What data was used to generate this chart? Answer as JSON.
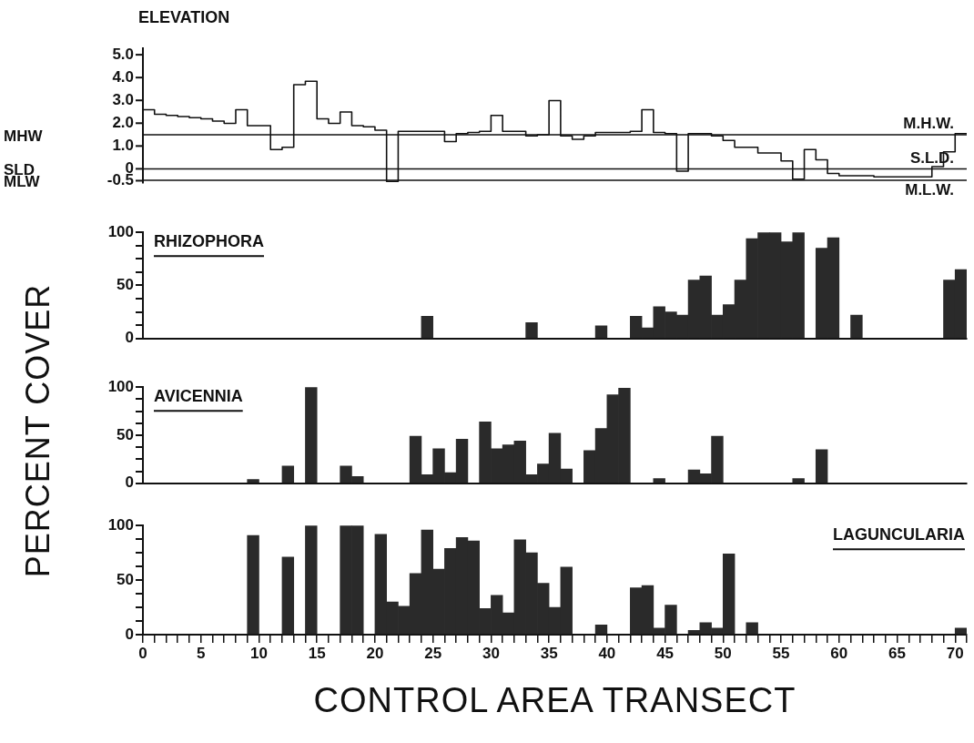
{
  "chart_data": [
    {
      "type": "step",
      "title": "ELEVATION",
      "color": "#111111",
      "xlim": [
        0,
        71
      ],
      "ylim": [
        -0.6,
        5.3
      ],
      "tick_labels": "y",
      "yticks": [
        {
          "value": 5,
          "label": "5.0"
        },
        {
          "value": 4,
          "label": "4.0"
        },
        {
          "value": 3,
          "label": "3.0"
        },
        {
          "value": 2,
          "label": "2.0"
        },
        {
          "value": 1,
          "label": "1.0"
        },
        0,
        -0.5
      ],
      "x": [
        0,
        1,
        2,
        3,
        4,
        5,
        6,
        7,
        8,
        9,
        10,
        11,
        12,
        13,
        14,
        15,
        16,
        17,
        18,
        19,
        20,
        21,
        22,
        23,
        24,
        25,
        26,
        27,
        28,
        29,
        30,
        31,
        32,
        33,
        34,
        35,
        36,
        37,
        38,
        39,
        40,
        41,
        42,
        43,
        44,
        45,
        46,
        47,
        48,
        49,
        50,
        51,
        52,
        53,
        54,
        55,
        56,
        57,
        58,
        59,
        60,
        61,
        62,
        63,
        64,
        65,
        66,
        67,
        68,
        69,
        70,
        71
      ],
      "values": [
        2.6,
        2.4,
        2.35,
        2.3,
        2.25,
        2.2,
        2.1,
        2.0,
        2.6,
        1.9,
        1.9,
        0.85,
        0.95,
        3.7,
        3.85,
        2.2,
        2.0,
        2.5,
        1.9,
        1.85,
        1.7,
        -0.55,
        1.65,
        1.65,
        1.65,
        1.65,
        1.2,
        1.55,
        1.6,
        1.65,
        2.35,
        1.65,
        1.65,
        1.45,
        1.5,
        3.0,
        1.45,
        1.3,
        1.45,
        1.6,
        1.6,
        1.6,
        1.65,
        2.6,
        1.6,
        1.55,
        -0.1,
        1.55,
        1.55,
        1.45,
        1.25,
        0.95,
        0.95,
        0.7,
        0.7,
        0.35,
        -0.45,
        0.85,
        0.4,
        -0.2,
        -0.3,
        -0.3,
        -0.3,
        -0.35,
        -0.35,
        -0.35,
        -0.35,
        -0.35,
        0.1,
        0.75,
        1.55,
        1.55
      ],
      "ref_lines": [
        {
          "axis": "y",
          "value": 1.5,
          "label": "M.H.W."
        },
        {
          "axis": "y",
          "value": 0,
          "label": "S.L.D."
        },
        {
          "axis": "y",
          "value": -0.5,
          "label": "M.L.W."
        }
      ],
      "annotations": [
        "MHW",
        "SLD",
        "MLW"
      ]
    },
    {
      "type": "bar",
      "title": "RHIZOPHORA",
      "color": "#2a2a2a",
      "xlim": [
        0,
        71
      ],
      "ylim": [
        0,
        100
      ],
      "tick_labels": "y",
      "yticks": [
        0,
        {
          "value": 12.5,
          "label": null
        },
        {
          "value": 25,
          "label": null
        },
        {
          "value": 37.5,
          "label": null
        },
        50,
        {
          "value": 62.5,
          "label": null
        },
        {
          "value": 75,
          "label": null
        },
        {
          "value": 87.5,
          "label": null
        },
        100
      ],
      "x": [
        24.5,
        33.5,
        39.5,
        42.5,
        43.5,
        44.5,
        45.5,
        46.5,
        47.5,
        48.5,
        49.5,
        50.5,
        51.5,
        52.5,
        53.5,
        54.5,
        55.5,
        56.5,
        58.5,
        59.5,
        61.5,
        69.5,
        70.5
      ],
      "values": [
        21,
        15,
        12,
        21,
        10,
        30,
        25,
        22,
        55,
        59,
        22,
        32,
        55,
        94,
        100,
        100,
        91,
        100,
        85,
        95,
        22,
        55,
        65
      ]
    },
    {
      "type": "bar",
      "title": "AVICENNIA",
      "ylabel": "PERCENT COVER",
      "color": "#2a2a2a",
      "xlim": [
        0,
        71
      ],
      "ylim": [
        0,
        100
      ],
      "tick_labels": "y",
      "yticks": [
        0,
        {
          "value": 12.5,
          "label": null
        },
        {
          "value": 25,
          "label": null
        },
        {
          "value": 37.5,
          "label": null
        },
        50,
        {
          "value": 62.5,
          "label": null
        },
        {
          "value": 75,
          "label": null
        },
        {
          "value": 87.5,
          "label": null
        },
        100
      ],
      "x": [
        9.5,
        12.5,
        14.5,
        17.5,
        18.5,
        23.5,
        24.5,
        25.5,
        26.5,
        27.5,
        29.5,
        30.5,
        31.5,
        32.5,
        33.5,
        34.5,
        35.5,
        36.5,
        38.5,
        39.5,
        40.5,
        41.5,
        44.5,
        47.5,
        48.5,
        49.5,
        56.5,
        58.5
      ],
      "values": [
        4,
        18,
        100,
        18,
        7,
        49,
        9,
        36,
        11,
        46,
        64,
        36,
        40,
        44,
        9,
        20,
        52,
        15,
        34,
        57,
        92,
        99,
        5,
        14,
        10,
        49,
        5,
        35
      ]
    },
    {
      "type": "bar",
      "title": "LAGUNCULARIA",
      "xlabel": "CONTROL AREA TRANSECT",
      "color": "#2a2a2a",
      "xlim": [
        0,
        71
      ],
      "ylim": [
        0,
        100
      ],
      "yticks": [
        0,
        {
          "value": 12.5,
          "label": null
        },
        {
          "value": 25,
          "label": null
        },
        {
          "value": 37.5,
          "label": null
        },
        50,
        {
          "value": 62.5,
          "label": null
        },
        {
          "value": 75,
          "label": null
        },
        {
          "value": 87.5,
          "label": null
        },
        100
      ],
      "xticks": [
        0,
        {
          "value": 1,
          "label": null
        },
        {
          "value": 2,
          "label": null
        },
        {
          "value": 3,
          "label": null
        },
        {
          "value": 4,
          "label": null
        },
        5,
        {
          "value": 6,
          "label": null
        },
        {
          "value": 7,
          "label": null
        },
        {
          "value": 8,
          "label": null
        },
        {
          "value": 9,
          "label": null
        },
        10,
        {
          "value": 11,
          "label": null
        },
        {
          "value": 12,
          "label": null
        },
        {
          "value": 13,
          "label": null
        },
        {
          "value": 14,
          "label": null
        },
        15,
        {
          "value": 16,
          "label": null
        },
        {
          "value": 17,
          "label": null
        },
        {
          "value": 18,
          "label": null
        },
        {
          "value": 19,
          "label": null
        },
        20,
        {
          "value": 21,
          "label": null
        },
        {
          "value": 22,
          "label": null
        },
        {
          "value": 23,
          "label": null
        },
        {
          "value": 24,
          "label": null
        },
        25,
        {
          "value": 26,
          "label": null
        },
        {
          "value": 27,
          "label": null
        },
        {
          "value": 28,
          "label": null
        },
        {
          "value": 29,
          "label": null
        },
        30,
        {
          "value": 31,
          "label": null
        },
        {
          "value": 32,
          "label": null
        },
        {
          "value": 33,
          "label": null
        },
        {
          "value": 34,
          "label": null
        },
        35,
        {
          "value": 36,
          "label": null
        },
        {
          "value": 37,
          "label": null
        },
        {
          "value": 38,
          "label": null
        },
        {
          "value": 39,
          "label": null
        },
        40,
        {
          "value": 41,
          "label": null
        },
        {
          "value": 42,
          "label": null
        },
        {
          "value": 43,
          "label": null
        },
        {
          "value": 44,
          "label": null
        },
        45,
        {
          "value": 46,
          "label": null
        },
        {
          "value": 47,
          "label": null
        },
        {
          "value": 48,
          "label": null
        },
        {
          "value": 49,
          "label": null
        },
        50,
        {
          "value": 51,
          "label": null
        },
        {
          "value": 52,
          "label": null
        },
        {
          "value": 53,
          "label": null
        },
        {
          "value": 54,
          "label": null
        },
        55,
        {
          "value": 56,
          "label": null
        },
        {
          "value": 57,
          "label": null
        },
        {
          "value": 58,
          "label": null
        },
        {
          "value": 59,
          "label": null
        },
        60,
        {
          "value": 61,
          "label": null
        },
        {
          "value": 62,
          "label": null
        },
        {
          "value": 63,
          "label": null
        },
        {
          "value": 64,
          "label": null
        },
        65,
        {
          "value": 66,
          "label": null
        },
        {
          "value": 67,
          "label": null
        },
        {
          "value": 68,
          "label": null
        },
        {
          "value": 69,
          "label": null
        },
        70,
        {
          "value": 71,
          "label": null
        }
      ],
      "x": [
        9.5,
        12.5,
        14.5,
        17.5,
        18.5,
        20.5,
        21.5,
        22.5,
        23.5,
        24.5,
        25.5,
        26.5,
        27.5,
        28.5,
        29.5,
        30.5,
        31.5,
        32.5,
        33.5,
        34.5,
        35.5,
        36.5,
        39.5,
        42.5,
        43.5,
        44.5,
        45.5,
        47.5,
        48.5,
        49.5,
        50.5,
        52.5,
        70.5
      ],
      "values": [
        91,
        71,
        100,
        100,
        100,
        92,
        30,
        26,
        56,
        96,
        60,
        79,
        89,
        86,
        24,
        36,
        20,
        87,
        75,
        47,
        25,
        62,
        9,
        43,
        45,
        6,
        27,
        4,
        11,
        6,
        74,
        11,
        6
      ]
    }
  ]
}
